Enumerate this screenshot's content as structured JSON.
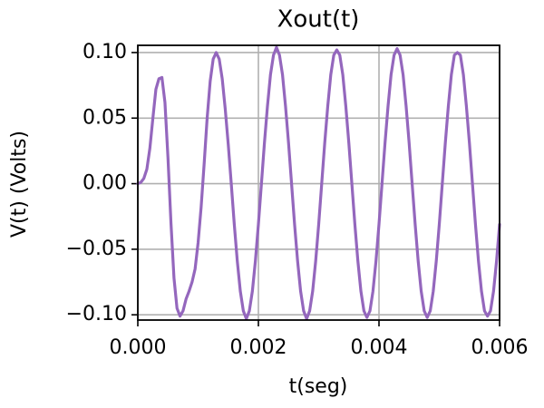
{
  "chart_data": {
    "type": "line",
    "title": "Xout(t)",
    "xlabel": "t(seg)",
    "ylabel": "V(t) (Volts)",
    "grid": true,
    "xlim": [
      0,
      0.006
    ],
    "ylim": [
      -0.104,
      0.1055
    ],
    "xticks": [
      {
        "value": 0,
        "label": "0.000"
      },
      {
        "value": 0.002,
        "label": "0.002"
      },
      {
        "value": 0.004,
        "label": "0.004"
      },
      {
        "value": 0.006,
        "label": "0.006"
      }
    ],
    "yticks": [
      {
        "value": 0.1,
        "label": "0.10"
      },
      {
        "value": 0.05,
        "label": "0.05"
      },
      {
        "value": 0,
        "label": "0.00"
      },
      {
        "value": -0.05,
        "label": "−0.05"
      },
      {
        "value": -0.1,
        "label": "−0.10"
      }
    ],
    "x": [
      0,
      5e-05,
      0.0001,
      0.00015,
      0.0002,
      0.00025,
      0.0003,
      0.00035,
      0.0004,
      0.00045,
      0.0005,
      0.00055,
      0.0006,
      0.00065,
      0.0007,
      0.00075,
      0.0008,
      0.00085,
      0.0009,
      0.00095,
      0.001,
      0.00105,
      0.0011,
      0.00115,
      0.0012,
      0.00125,
      0.0013,
      0.00135,
      0.0014,
      0.00145,
      0.0015,
      0.00155,
      0.0016,
      0.00165,
      0.0017,
      0.00175,
      0.0018,
      0.00185,
      0.0019,
      0.00195,
      0.002,
      0.00205,
      0.0021,
      0.00215,
      0.0022,
      0.00225,
      0.0023,
      0.00235,
      0.0024,
      0.00245,
      0.0025,
      0.00255,
      0.0026,
      0.00265,
      0.0027,
      0.00275,
      0.0028,
      0.00285,
      0.0029,
      0.00295,
      0.003,
      0.00305,
      0.0031,
      0.00315,
      0.0032,
      0.00325,
      0.0033,
      0.00335,
      0.0034,
      0.00345,
      0.0035,
      0.00355,
      0.0036,
      0.00365,
      0.0037,
      0.00375,
      0.0038,
      0.00385,
      0.0039,
      0.00395,
      0.004,
      0.00405,
      0.0041,
      0.00415,
      0.0042,
      0.00425,
      0.0043,
      0.00435,
      0.0044,
      0.00445,
      0.0045,
      0.00455,
      0.0046,
      0.00465,
      0.0047,
      0.00475,
      0.0048,
      0.00485,
      0.0049,
      0.00495,
      0.005,
      0.00505,
      0.0051,
      0.00515,
      0.0052,
      0.00525,
      0.0053,
      0.00535,
      0.0054,
      0.00545,
      0.0055,
      0.00555,
      0.0056,
      0.00565,
      0.0057,
      0.00575,
      0.0058,
      0.00585,
      0.0059,
      0.00595,
      0.006
    ],
    "series": [
      {
        "name": "Xout",
        "color": "#9467bd",
        "values": [
          0,
          0.001,
          0.004,
          0.011,
          0.027,
          0.05,
          0.072,
          0.08,
          0.081,
          0.062,
          0.02,
          -0.03,
          -0.072,
          -0.095,
          -0.101,
          -0.097,
          -0.088,
          -0.082,
          -0.075,
          -0.065,
          -0.045,
          -0.018,
          0.015,
          0.05,
          0.078,
          0.095,
          0.1,
          0.095,
          0.08,
          0.057,
          0.03,
          0,
          -0.031,
          -0.059,
          -0.082,
          -0.097,
          -0.103,
          -0.097,
          -0.082,
          -0.059,
          -0.031,
          0,
          0.031,
          0.059,
          0.083,
          0.098,
          0.104,
          0.098,
          0.083,
          0.059,
          0.031,
          0,
          -0.031,
          -0.059,
          -0.082,
          -0.097,
          -0.103,
          -0.097,
          -0.082,
          -0.059,
          -0.031,
          0,
          0.031,
          0.059,
          0.083,
          0.098,
          0.102,
          0.098,
          0.083,
          0.059,
          0.031,
          0,
          -0.031,
          -0.059,
          -0.082,
          -0.097,
          -0.102,
          -0.097,
          -0.082,
          -0.059,
          -0.031,
          0,
          0.031,
          0.059,
          0.083,
          0.098,
          0.103,
          0.098,
          0.083,
          0.059,
          0.031,
          0,
          -0.031,
          -0.059,
          -0.082,
          -0.097,
          -0.102,
          -0.097,
          -0.082,
          -0.059,
          -0.031,
          0,
          0.031,
          0.059,
          0.083,
          0.098,
          0.1,
          0.098,
          0.083,
          0.059,
          0.031,
          0,
          -0.031,
          -0.059,
          -0.082,
          -0.097,
          -0.101,
          -0.097,
          -0.082,
          -0.059,
          -0.031
        ]
      }
    ]
  }
}
